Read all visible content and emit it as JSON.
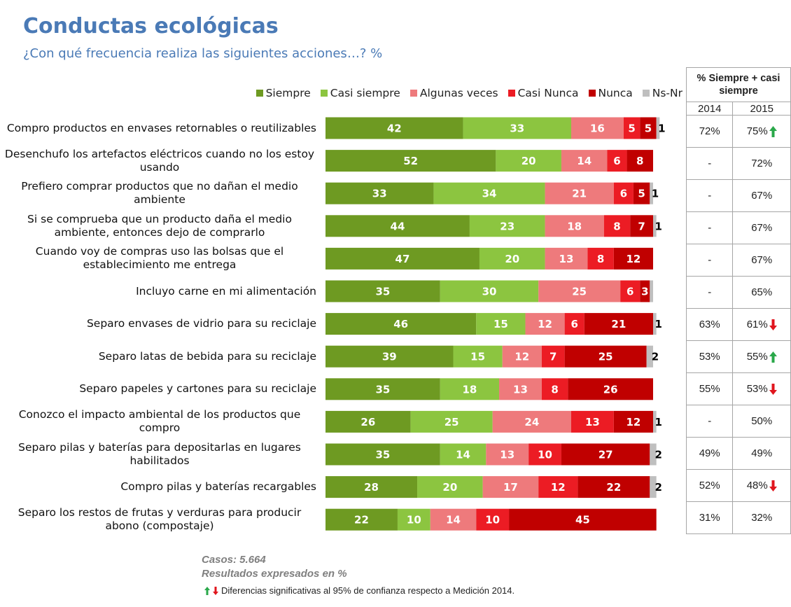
{
  "chart_data": {
    "type": "stacked-bar-horizontal",
    "title": "Conductas ecológicas",
    "subtitle": "¿Con qué frecuencia realiza las siguientes acciones…? %",
    "categories": [
      "Compro productos en envases retornables o reutilizables",
      "Desenchufo los artefactos eléctricos cuando no los estoy usando",
      "Prefiero comprar productos que no dañan el medio ambiente",
      "Si se comprueba que un producto daña el medio ambiente, entonces dejo de comprarlo",
      "Cuando voy de compras uso las bolsas que el establecimiento me entrega",
      "Incluyo carne en mi alimentación",
      "Separo envases de vidrio para su reciclaje",
      "Separo latas de bebida para su reciclaje",
      "Separo papeles y cartones para su reciclaje",
      "Conozco el impacto ambiental de los productos que compro",
      "Separo pilas y baterías para depositarlas en lugares habilitados",
      "Compro pilas y baterías recargables",
      "Separo los restos de frutas y verduras para producir abono (compostaje)"
    ],
    "series": [
      {
        "name": "Siempre",
        "color": "#6e9a22",
        "values": [
          42,
          52,
          33,
          44,
          47,
          35,
          46,
          39,
          35,
          26,
          35,
          28,
          22
        ]
      },
      {
        "name": "Casi siempre",
        "color": "#8cc540",
        "values": [
          33,
          20,
          34,
          23,
          20,
          30,
          15,
          15,
          18,
          25,
          14,
          20,
          10
        ]
      },
      {
        "name": "Algunas veces",
        "color": "#ee7a7c",
        "values": [
          16,
          14,
          21,
          18,
          13,
          25,
          12,
          12,
          13,
          24,
          13,
          17,
          14
        ]
      },
      {
        "name": "Casi Nunca",
        "color": "#ec1c24",
        "values": [
          5,
          6,
          6,
          8,
          8,
          6,
          6,
          7,
          8,
          13,
          10,
          12,
          10
        ]
      },
      {
        "name": "Nunca",
        "color": "#c00000",
        "values": [
          5,
          8,
          5,
          7,
          12,
          3,
          21,
          25,
          26,
          12,
          27,
          22,
          45
        ]
      },
      {
        "name": "Ns-Nr",
        "color": "#bfbfbf",
        "values": [
          1,
          0,
          1,
          1,
          0,
          1,
          1,
          2,
          0,
          1,
          2,
          2,
          0
        ],
        "value_labels": [
          "1",
          null,
          "1",
          "1",
          null,
          null,
          "1",
          "2",
          null,
          "1",
          "2",
          "2",
          null
        ]
      }
    ]
  },
  "table": {
    "header": "% Siempre + casi siempre",
    "columns": [
      "2014",
      "2015"
    ],
    "rows": [
      [
        "72%",
        "75%"
      ],
      [
        "-",
        "72%"
      ],
      [
        "-",
        "67%"
      ],
      [
        "-",
        "67%"
      ],
      [
        "-",
        "67%"
      ],
      [
        "-",
        "65%"
      ],
      [
        "63%",
        "61%"
      ],
      [
        "53%",
        "55%"
      ],
      [
        "55%",
        "53%"
      ],
      [
        "-",
        "50%"
      ],
      [
        "49%",
        "49%"
      ],
      [
        "52%",
        "48%"
      ],
      [
        "31%",
        "32%"
      ]
    ],
    "trends": [
      "up",
      null,
      null,
      null,
      null,
      null,
      "down",
      "up",
      "down",
      null,
      null,
      "down",
      null
    ]
  },
  "notes": {
    "cases": "Casos: 5.664",
    "units": "Resultados expresados en %",
    "significance": "Diferencias significativas al 95% de confianza respecto a Medición 2014."
  }
}
